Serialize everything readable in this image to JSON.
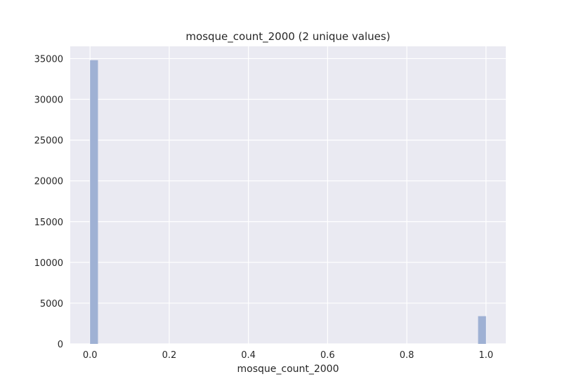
{
  "chart_data": {
    "type": "bar",
    "title": "mosque_count_2000 (2 unique values)",
    "xlabel": "mosque_count_2000",
    "ylabel": "",
    "xlim": [
      -0.05,
      1.05
    ],
    "ylim": [
      0,
      36500
    ],
    "x_ticks": [
      "0.0",
      "0.2",
      "0.4",
      "0.6",
      "0.8",
      "1.0"
    ],
    "x_tick_values": [
      0.0,
      0.2,
      0.4,
      0.6,
      0.8,
      1.0
    ],
    "y_ticks": [
      "0",
      "5000",
      "10000",
      "15000",
      "20000",
      "25000",
      "30000",
      "35000"
    ],
    "y_tick_values": [
      0,
      5000,
      10000,
      15000,
      20000,
      25000,
      30000,
      35000
    ],
    "bins": [
      {
        "x0": 0.0,
        "x1": 0.02,
        "count": 34800
      },
      {
        "x0": 0.98,
        "x1": 1.0,
        "count": 3400
      }
    ],
    "grid": true,
    "colors": {
      "bar": "#9fb1d4",
      "background": "#eaeaf2",
      "grid": "#ffffff"
    }
  }
}
